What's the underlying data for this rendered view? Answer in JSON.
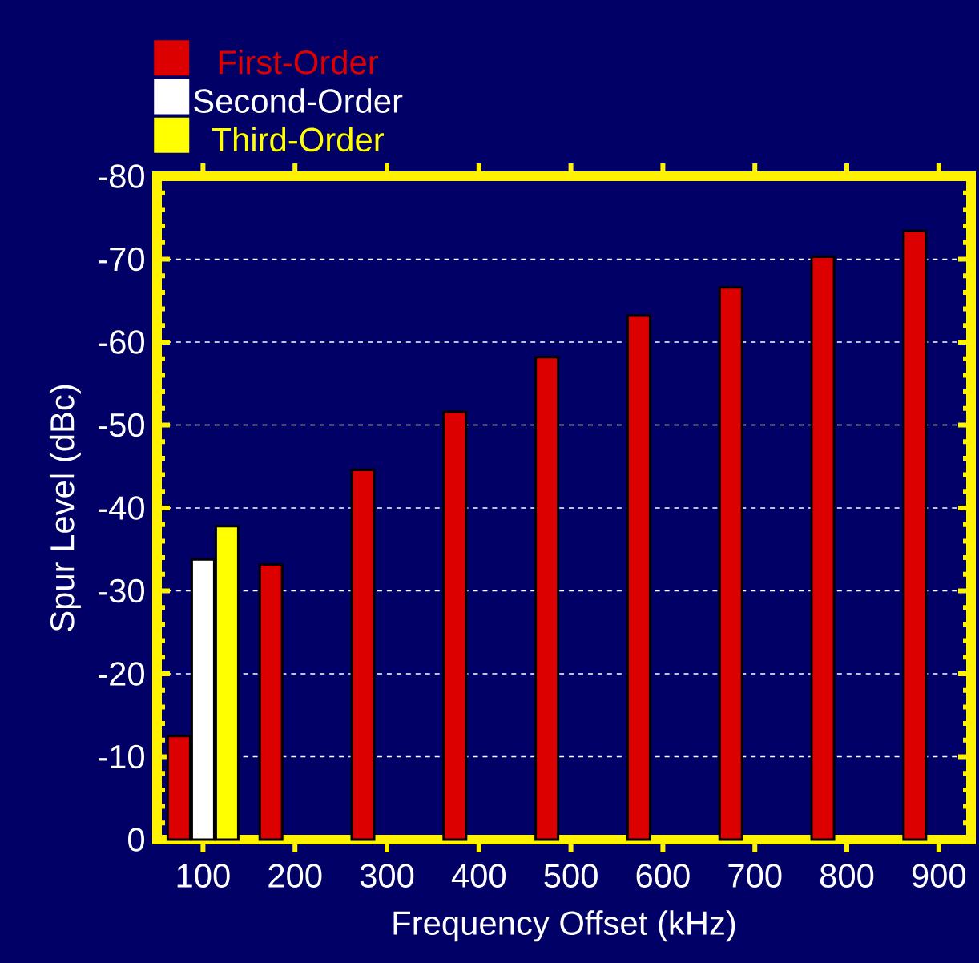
{
  "chart_data": {
    "type": "bar",
    "xlabel": "Frequency Offset (kHz)",
    "ylabel": "Spur Level (dBc)",
    "categories": [
      "100",
      "200",
      "300",
      "400",
      "500",
      "600",
      "700",
      "800",
      "900"
    ],
    "series": [
      {
        "name": "First-Order",
        "color": "#dd0000",
        "values": [
          -12.5,
          -33.2,
          -44.6,
          -51.6,
          -58.2,
          -63.2,
          -66.6,
          -70.3,
          -73.4
        ]
      },
      {
        "name": "Second-Order",
        "color": "#ffffff",
        "values": [
          -33.8,
          null,
          null,
          null,
          null,
          null,
          null,
          null,
          null
        ]
      },
      {
        "name": "Third-Order",
        "color": "#ffff00",
        "values": [
          -37.8,
          null,
          null,
          null,
          null,
          null,
          null,
          null,
          null
        ]
      }
    ],
    "ylim": [
      0,
      -80
    ],
    "yticks": [
      0,
      -10,
      -20,
      -30,
      -40,
      -50,
      -60,
      -70,
      -80
    ],
    "grid": "y",
    "legend": "top left"
  }
}
